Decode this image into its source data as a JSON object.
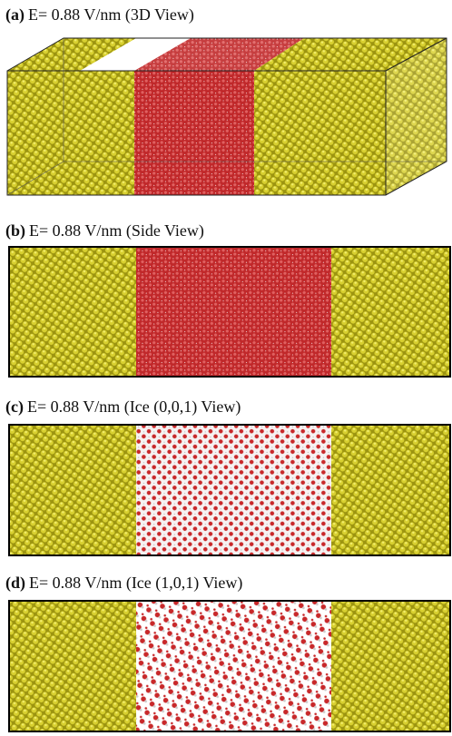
{
  "panels": [
    {
      "label": "(a)",
      "caption": "E= 0.88 V/nm (3D View)"
    },
    {
      "label": "(b)",
      "caption": "E= 0.88 V/nm (Side View)"
    },
    {
      "label": "(c)",
      "caption": "E= 0.88 V/nm (Ice (0,0,1) View)"
    },
    {
      "label": "(d)",
      "caption": "E= 0.88 V/nm (Ice (1,0,1) View)"
    }
  ]
}
